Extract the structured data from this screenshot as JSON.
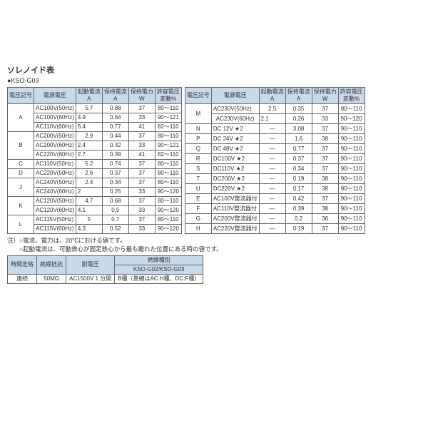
{
  "title": "ソレノイド表",
  "subtitle": "●KSO-G03",
  "headers": [
    "電圧記号",
    "電源電圧",
    "起動電流\nA",
    "保持電流\nA",
    "保持電力\nW",
    "許容電圧\n変動%"
  ],
  "left_rows": [
    {
      "code": "A",
      "span": 3,
      "r": [
        [
          "AC100V(50Hz)",
          "5.7",
          "0.88",
          "37",
          "80～110"
        ],
        [
          "AC100V(60Hz)",
          "4.9",
          "0.64",
          "33",
          "90～121"
        ],
        [
          "AC110V(60Hz)",
          "5.4",
          "0.77",
          "41",
          "82～110"
        ]
      ]
    },
    {
      "code": "B",
      "span": 3,
      "r": [
        [
          "AC200V(50Hz)",
          "2.9",
          "0.44",
          "37",
          "80～110"
        ],
        [
          "AC200V(60Hz)",
          "2.4",
          "0.32",
          "33",
          "90～121"
        ],
        [
          "AC220V(60Hz)",
          "2.7",
          "0.39",
          "41",
          "82～110"
        ]
      ]
    },
    {
      "code": "C",
      "span": 1,
      "r": [
        [
          "AC110V(50Hz)",
          "5.2",
          "0.74",
          "37",
          "80～110"
        ]
      ]
    },
    {
      "code": "D",
      "span": 1,
      "r": [
        [
          "AC220V(50Hz)",
          "2.6",
          "0.37",
          "37",
          "80～110"
        ]
      ]
    },
    {
      "code": "J",
      "span": 2,
      "r": [
        [
          "AC240V(50Hz)",
          "2.4",
          "0.34",
          "37",
          "80～110"
        ],
        [
          "AC240V(60Hz)",
          "2",
          "0.25",
          "33",
          "90～120"
        ]
      ]
    },
    {
      "code": "K",
      "span": 2,
      "r": [
        [
          "AC120V(50Hz)",
          "4.7",
          "0.68",
          "37",
          "80～110"
        ],
        [
          "AC120V(60Hz)",
          "4.1",
          "0.5",
          "33",
          "90～120"
        ]
      ]
    },
    {
      "code": "L",
      "span": 2,
      "r": [
        [
          "AC115V(50Hz)",
          "5",
          "0.7",
          "37",
          "80～110"
        ],
        [
          "AC115V(60Hz)",
          "4.3",
          "0.52",
          "33",
          "90～120"
        ]
      ]
    }
  ],
  "right_rows": [
    {
      "code": "M",
      "span": 2,
      "r": [
        [
          "AC230V(50Hz)",
          "2.5",
          "0.35",
          "37",
          "80～110"
        ],
        [
          "AC230V(60Hz)",
          "2.1",
          "0.26",
          "33",
          "90～120"
        ]
      ]
    },
    {
      "code": "N",
      "span": 1,
      "r": [
        [
          "DC 12V ★2",
          "―",
          "3.08",
          "37",
          "90～110"
        ]
      ]
    },
    {
      "code": "P",
      "span": 1,
      "r": [
        [
          "DC 24V ★2",
          "―",
          "1.6",
          "38",
          "90～110"
        ]
      ]
    },
    {
      "code": "Q",
      "span": 1,
      "r": [
        [
          "DC 48V ★2",
          "―",
          "0.77",
          "37",
          "90～110"
        ]
      ]
    },
    {
      "code": "R",
      "span": 1,
      "r": [
        [
          "DC100V ★2",
          "―",
          "0.37",
          "37",
          "90～110"
        ]
      ]
    },
    {
      "code": "S",
      "span": 1,
      "r": [
        [
          "DC110V ★2",
          "―",
          "0.34",
          "37",
          "90～110"
        ]
      ]
    },
    {
      "code": "T",
      "span": 1,
      "r": [
        [
          "DC200V ★2",
          "―",
          "0.19",
          "38",
          "90～110"
        ]
      ]
    },
    {
      "code": "U",
      "span": 1,
      "r": [
        [
          "DC220V ★2",
          "―",
          "0.17",
          "38",
          "90～110"
        ]
      ]
    },
    {
      "code": "E",
      "span": 1,
      "r": [
        [
          "AC100V整流器付",
          "―",
          "0.42",
          "37",
          "90～110"
        ]
      ]
    },
    {
      "code": "F",
      "span": 1,
      "r": [
        [
          "AC110V整流器付",
          "―",
          "0.39",
          "38",
          "90～110"
        ]
      ]
    },
    {
      "code": "G",
      "span": 1,
      "r": [
        [
          "AC200V整流器付",
          "―",
          "0.2",
          "36",
          "90～110"
        ]
      ]
    },
    {
      "code": "H",
      "span": 1,
      "r": [
        [
          "AC220V整流器付",
          "―",
          "0.19",
          "37",
          "90～110"
        ]
      ]
    }
  ],
  "note1": "注）○電流、電力は、20℃における値です。",
  "note2": "　　○起動電流は、可動鉄心が固定鉄心から最も離れた位置にある時の値です。",
  "tbl2": {
    "h1": [
      "時間定格",
      "絶縁抵抗",
      "耐電圧",
      "絶縁種別"
    ],
    "h2": "KSO-G02/KSO-G03",
    "r": [
      "連続",
      "50MΩ",
      "AC1500V 1 分間",
      "B種（巻線はAC:H種、DC:F種）"
    ]
  }
}
